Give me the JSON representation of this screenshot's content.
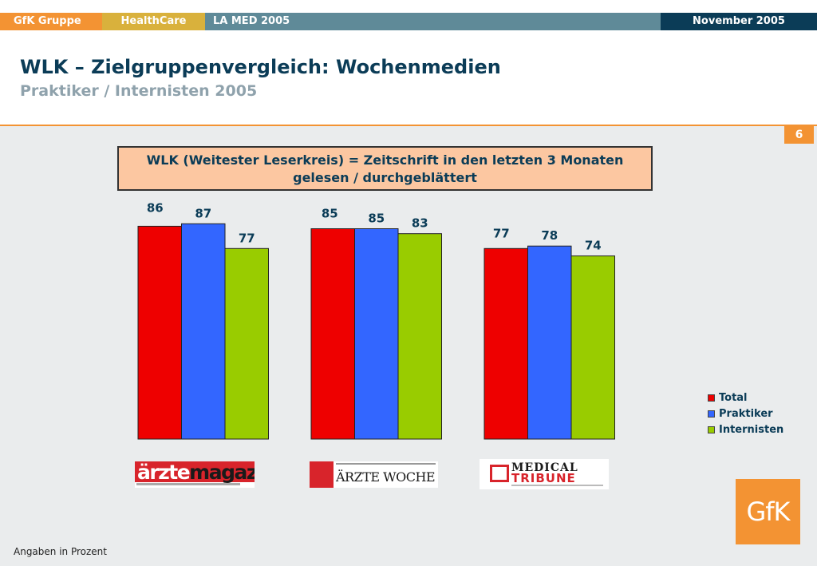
{
  "header": {
    "segments": [
      "GfK Gruppe",
      "HealthCare",
      "LA MED 2005",
      "November 2005"
    ]
  },
  "title": "WLK – Zielgruppenvergleich: Wochenmedien",
  "subtitle": "Praktiker / Internisten 2005",
  "page_number": "6",
  "definition": {
    "line1": "WLK (Weitester Leserkreis) = Zeitschrift in den letzten 3 Monaten",
    "line2": "gelesen / durchgeblättert"
  },
  "logos": {
    "aerztemagazin": {
      "part1": "ärzte",
      "part2": "magazin"
    },
    "aerztewoche": "ÄRZTE WOCHE",
    "medicaltribune": {
      "line1": "MEDICAL",
      "line2": "TRIBUNE"
    },
    "gfk": "GfK"
  },
  "footnote": "Angaben in Prozent",
  "colors": {
    "orange": "#f39333",
    "navy": "#0b3c57",
    "total": "#ee0000",
    "praktiker": "#3366ff",
    "internisten": "#99cc00"
  },
  "chart_data": {
    "type": "bar",
    "categories": [
      "ärztemagazin",
      "ÄRZTE WOCHE",
      "MEDICAL TRIBUNE"
    ],
    "series": [
      {
        "name": "Total",
        "color": "#ee0000",
        "values": [
          86,
          85,
          77
        ]
      },
      {
        "name": "Praktiker",
        "color": "#3366ff",
        "values": [
          87,
          85,
          78
        ]
      },
      {
        "name": "Internisten",
        "color": "#99cc00",
        "values": [
          77,
          83,
          74
        ]
      }
    ],
    "ylim": [
      0,
      100
    ],
    "grid": false,
    "legend": "right"
  }
}
